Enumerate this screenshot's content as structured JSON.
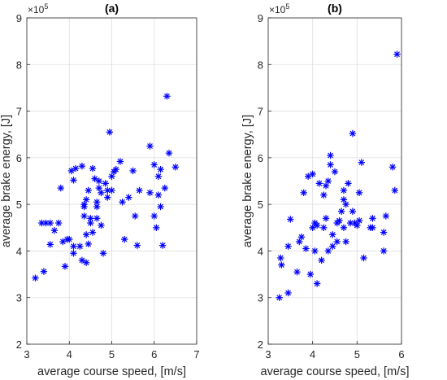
{
  "chart_data": [
    {
      "type": "scatter",
      "title": "(a)",
      "xlabel": "average course speed, [m/s]",
      "ylabel": "average brake energy, [J]",
      "y_multiplier_base": "×10",
      "y_multiplier_exp": "5",
      "xlim": [
        3,
        7
      ],
      "ylim": [
        2,
        9
      ],
      "xticks": [
        3,
        4,
        5,
        6,
        7
      ],
      "yticks": [
        2,
        3,
        4,
        5,
        6,
        7,
        8,
        9
      ],
      "grid": true,
      "marker": "asterisk",
      "color": "#0000ff",
      "points": [
        [
          3.2,
          3.42
        ],
        [
          3.35,
          4.6
        ],
        [
          3.45,
          4.6
        ],
        [
          3.4,
          3.56
        ],
        [
          3.55,
          4.6
        ],
        [
          3.55,
          4.14
        ],
        [
          3.75,
          4.6
        ],
        [
          3.65,
          4.44
        ],
        [
          3.8,
          5.35
        ],
        [
          3.85,
          4.2
        ],
        [
          3.9,
          3.67
        ],
        [
          3.95,
          4.25
        ],
        [
          4.0,
          4.25
        ],
        [
          4.05,
          5.72
        ],
        [
          4.1,
          5.52
        ],
        [
          4.1,
          4.1
        ],
        [
          4.15,
          5.77
        ],
        [
          4.1,
          3.95
        ],
        [
          4.25,
          4.1
        ],
        [
          4.3,
          5.82
        ],
        [
          4.3,
          3.8
        ],
        [
          4.35,
          5.0
        ],
        [
          4.35,
          4.95
        ],
        [
          4.35,
          4.75
        ],
        [
          4.4,
          4.35
        ],
        [
          4.4,
          5.1
        ],
        [
          4.4,
          3.75
        ],
        [
          4.45,
          5.3
        ],
        [
          4.45,
          4.15
        ],
        [
          4.5,
          4.6
        ],
        [
          4.5,
          4.7
        ],
        [
          4.55,
          5.77
        ],
        [
          4.55,
          4.4
        ],
        [
          4.6,
          5.55
        ],
        [
          4.65,
          4.7
        ],
        [
          4.65,
          5.05
        ],
        [
          4.65,
          4.95
        ],
        [
          4.7,
          5.35
        ],
        [
          4.7,
          5.5
        ],
        [
          4.75,
          5.25
        ],
        [
          4.75,
          4.55
        ],
        [
          4.8,
          3.95
        ],
        [
          4.85,
          5.45
        ],
        [
          4.9,
          5.15
        ],
        [
          4.95,
          6.55
        ],
        [
          4.9,
          5.3
        ],
        [
          5.0,
          5.3
        ],
        [
          5.05,
          5.7
        ],
        [
          5.0,
          5.6
        ],
        [
          5.1,
          5.75
        ],
        [
          5.2,
          5.92
        ],
        [
          5.25,
          5.05
        ],
        [
          5.3,
          4.25
        ],
        [
          5.4,
          5.15
        ],
        [
          5.5,
          5.72
        ],
        [
          5.55,
          4.75
        ],
        [
          5.6,
          4.12
        ],
        [
          5.65,
          5.3
        ],
        [
          5.9,
          6.25
        ],
        [
          5.9,
          5.25
        ],
        [
          6.0,
          5.85
        ],
        [
          6.0,
          4.75
        ],
        [
          6.05,
          4.5
        ],
        [
          6.1,
          5.6
        ],
        [
          6.1,
          5.2
        ],
        [
          6.15,
          5.75
        ],
        [
          6.15,
          4.95
        ],
        [
          6.2,
          4.12
        ],
        [
          6.25,
          5.35
        ],
        [
          6.3,
          7.32
        ],
        [
          6.35,
          6.1
        ],
        [
          6.5,
          5.8
        ]
      ]
    },
    {
      "type": "scatter",
      "title": "(b)",
      "xlabel": "average course speed, [m/s]",
      "ylabel": "average brake energy, [J]",
      "y_multiplier_base": "×10",
      "y_multiplier_exp": "5",
      "xlim": [
        3,
        6
      ],
      "ylim": [
        2,
        9
      ],
      "xticks": [
        3,
        4,
        5,
        6
      ],
      "yticks": [
        2,
        3,
        4,
        5,
        6,
        7,
        8,
        9
      ],
      "grid": true,
      "marker": "asterisk",
      "color": "#0000ff",
      "points": [
        [
          3.25,
          3.0
        ],
        [
          3.28,
          3.85
        ],
        [
          3.3,
          3.7
        ],
        [
          3.45,
          4.1
        ],
        [
          3.45,
          3.1
        ],
        [
          3.5,
          4.68
        ],
        [
          3.65,
          3.55
        ],
        [
          3.7,
          4.2
        ],
        [
          3.75,
          4.3
        ],
        [
          3.8,
          5.25
        ],
        [
          3.85,
          4.05
        ],
        [
          3.9,
          5.6
        ],
        [
          3.95,
          3.5
        ],
        [
          4.0,
          5.65
        ],
        [
          4.0,
          4.5
        ],
        [
          4.05,
          4.6
        ],
        [
          4.05,
          4.0
        ],
        [
          4.1,
          4.55
        ],
        [
          4.1,
          3.3
        ],
        [
          4.15,
          5.45
        ],
        [
          4.2,
          3.8
        ],
        [
          4.25,
          5.2
        ],
        [
          4.25,
          4.5
        ],
        [
          4.3,
          5.4
        ],
        [
          4.3,
          4.7
        ],
        [
          4.35,
          4.0
        ],
        [
          4.35,
          5.5
        ],
        [
          4.4,
          6.05
        ],
        [
          4.4,
          5.85
        ],
        [
          4.45,
          4.35
        ],
        [
          4.45,
          4.1
        ],
        [
          4.5,
          5.7
        ],
        [
          4.55,
          4.6
        ],
        [
          4.55,
          4.2
        ],
        [
          4.6,
          4.65
        ],
        [
          4.65,
          4.85
        ],
        [
          4.7,
          5.1
        ],
        [
          4.7,
          5.3
        ],
        [
          4.7,
          4.5
        ],
        [
          4.75,
          4.2
        ],
        [
          4.75,
          5.0
        ],
        [
          4.8,
          5.45
        ],
        [
          4.85,
          4.6
        ],
        [
          4.9,
          6.52
        ],
        [
          4.9,
          4.85
        ],
        [
          4.95,
          4.6
        ],
        [
          5.0,
          4.55
        ],
        [
          5.05,
          5.25
        ],
        [
          5.05,
          4.65
        ],
        [
          5.1,
          5.9
        ],
        [
          5.15,
          3.85
        ],
        [
          5.3,
          4.5
        ],
        [
          5.35,
          4.7
        ],
        [
          5.35,
          4.5
        ],
        [
          5.6,
          4.0
        ],
        [
          5.6,
          4.4
        ],
        [
          5.65,
          4.75
        ],
        [
          5.8,
          5.8
        ],
        [
          5.85,
          5.3
        ],
        [
          5.9,
          8.22
        ]
      ]
    }
  ]
}
